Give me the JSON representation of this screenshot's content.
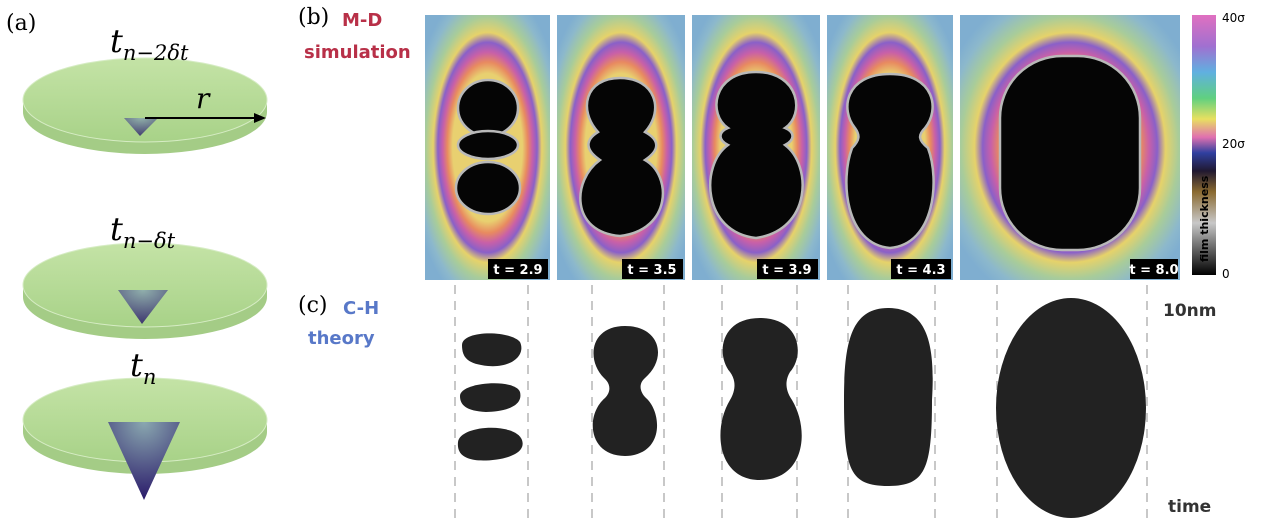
{
  "panel_a": {
    "label": "(a)",
    "times": [
      {
        "base": "t",
        "sub": "n−2δt"
      },
      {
        "base": "t",
        "sub": "n−δt"
      },
      {
        "base": "t",
        "sub": "n"
      }
    ],
    "radius_label": "r"
  },
  "panel_b": {
    "label": "(b)",
    "title_lines": [
      "M-D",
      "simulation"
    ],
    "snapshots": [
      "t = 2.9",
      "t = 3.5",
      "t = 3.9",
      "t = 4.3",
      "t = 8.0"
    ],
    "colorbar": {
      "ticks": [
        "40σ",
        "20σ",
        "0"
      ],
      "label": "film thickness"
    }
  },
  "panel_c": {
    "label": "(c)",
    "title_lines": [
      "C-H",
      "theory"
    ],
    "scale": "10nm",
    "axis": "time"
  }
}
